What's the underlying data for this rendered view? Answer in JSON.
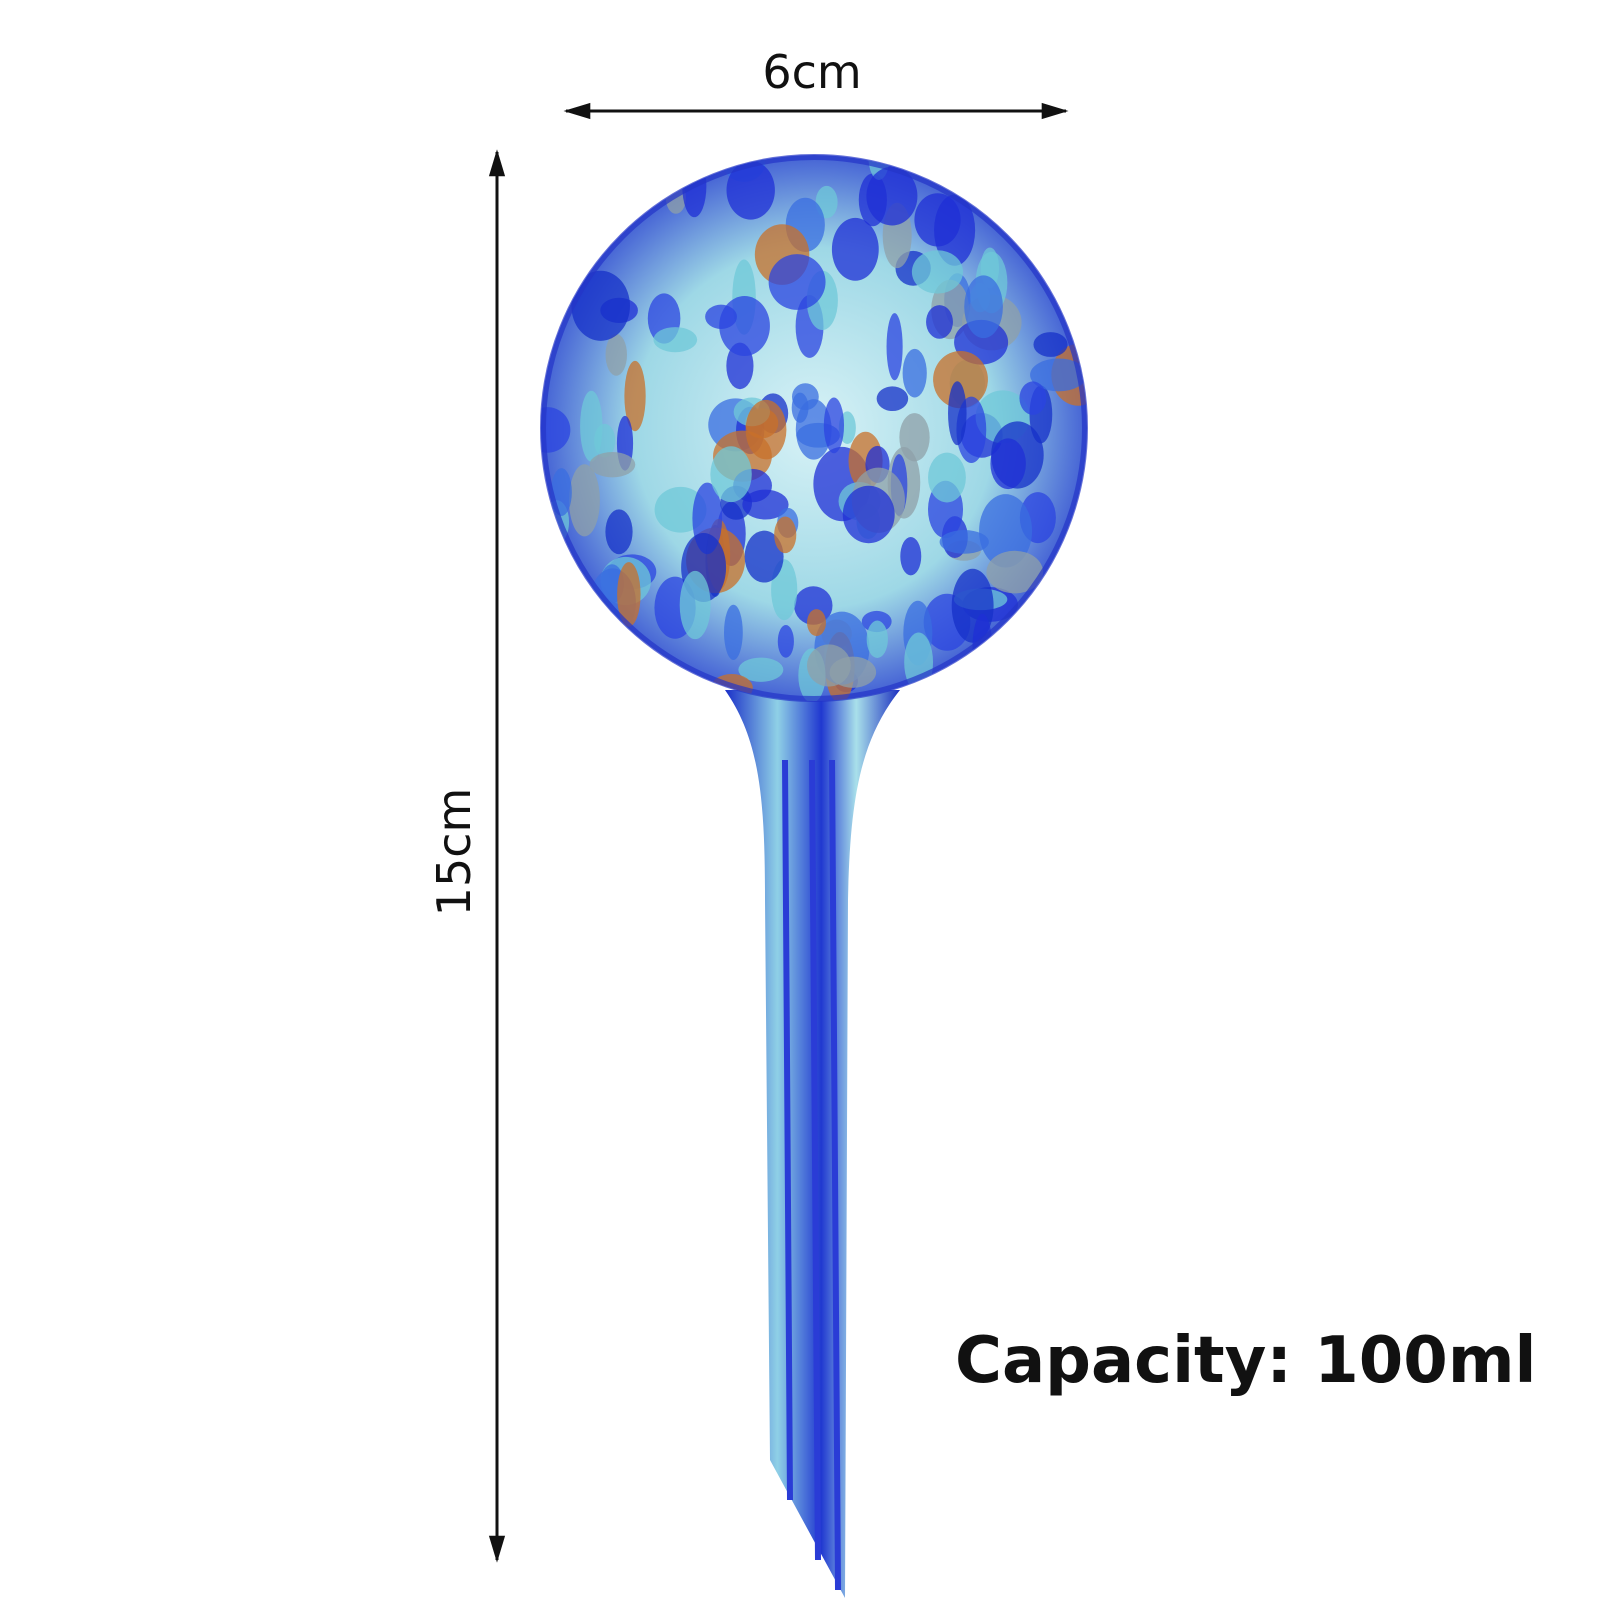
{
  "dimensions": {
    "width": "6cm",
    "height": "15cm"
  },
  "capacity": "Capacity: 100ml"
}
